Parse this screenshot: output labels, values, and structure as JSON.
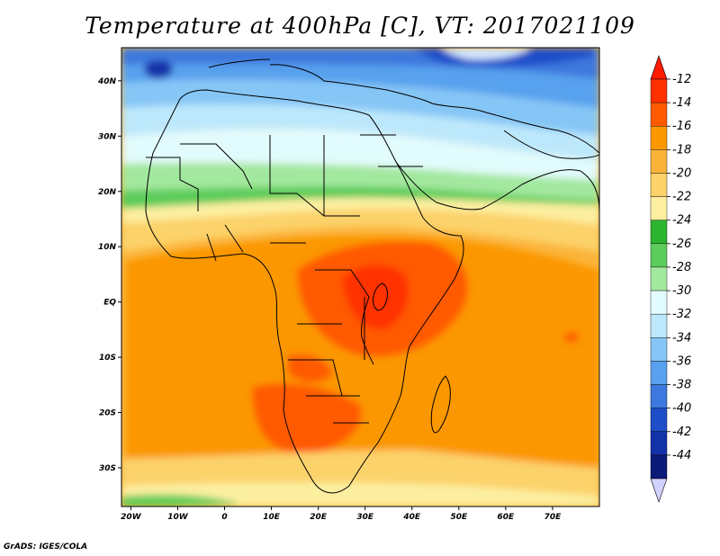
{
  "title": "Temperature at 400hPa [C], VT: 2017021109",
  "credit": "GrADS: IGES/COLA",
  "map": {
    "type": "filled-contour-map",
    "variable": "Temperature at 400hPa",
    "units": "C",
    "valid_time": "2017021109",
    "lon_range": [
      -22,
      80
    ],
    "lat_range": [
      -37,
      46
    ],
    "lat_ticks": [
      "40N",
      "30N",
      "20N",
      "10N",
      "EQ",
      "10S",
      "20S",
      "30S"
    ],
    "lon_ticks": [
      "20W",
      "10W",
      "0",
      "10E",
      "20E",
      "30E",
      "40E",
      "50E",
      "60E",
      "70E"
    ]
  },
  "colorbar": {
    "labels": [
      "-12",
      "-14",
      "-16",
      "-18",
      "-20",
      "-22",
      "-24",
      "-26",
      "-28",
      "-30",
      "-32",
      "-34",
      "-36",
      "-38",
      "-40",
      "-42",
      "-44"
    ],
    "colors": [
      "#ff3000",
      "#ff5a00",
      "#fb9700",
      "#fbb43a",
      "#fcd26a",
      "#fcefa0",
      "#2cb42e",
      "#5ccc5a",
      "#a3e89f",
      "#e2fbfd",
      "#bde8fb",
      "#86c6f6",
      "#59a1ee",
      "#3c78dd",
      "#1e4ec8",
      "#1432a8",
      "#0c1a78"
    ],
    "over_color": "#ff1a00",
    "under_color": "#d2d2ff"
  }
}
